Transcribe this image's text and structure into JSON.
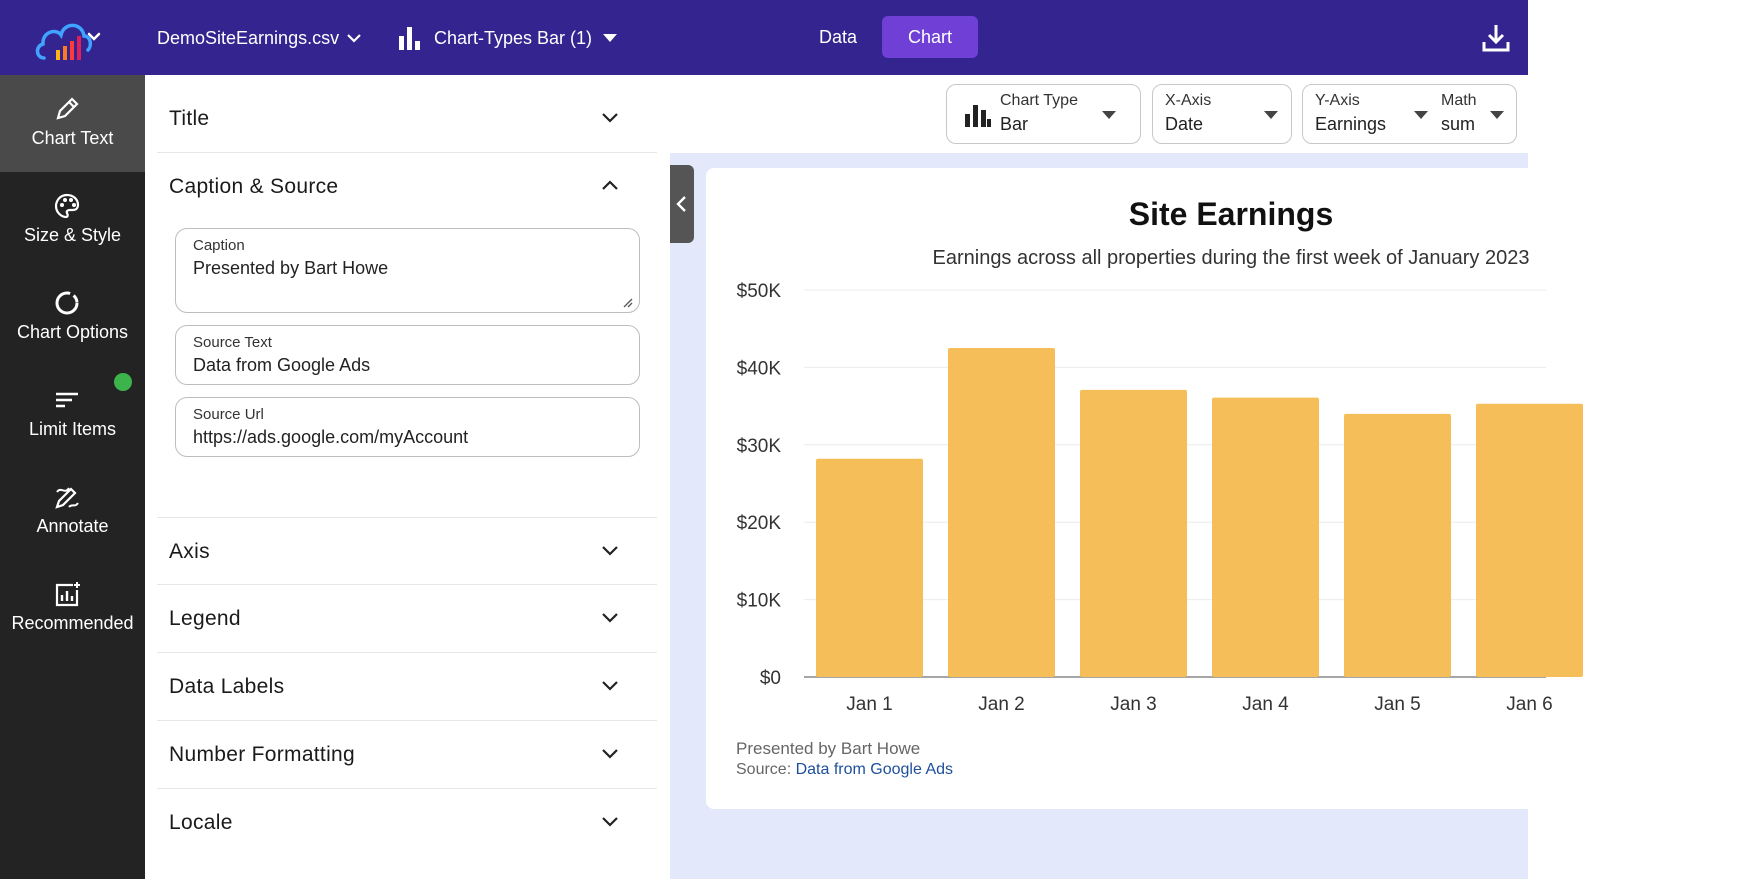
{
  "topbar": {
    "file_name": "DemoSiteEarnings.csv",
    "chart_name": "Chart-Types Bar (1)",
    "nav_data": "Data",
    "nav_chart": "Chart"
  },
  "rail": {
    "items": [
      {
        "label": "Chart Text",
        "icon": "pencil-icon"
      },
      {
        "label": "Size & Style",
        "icon": "palette-icon"
      },
      {
        "label": "Chart Options",
        "icon": "circle-icon"
      },
      {
        "label": "Limit Items",
        "icon": "sort-lines-icon"
      },
      {
        "label": "Annotate",
        "icon": "annotate-icon"
      },
      {
        "label": "Recommended",
        "icon": "recommended-chart-icon"
      }
    ]
  },
  "panel": {
    "sections": [
      "Title",
      "Caption & Source",
      "Axis",
      "Legend",
      "Data Labels",
      "Number Formatting",
      "Locale"
    ],
    "caption_label": "Caption",
    "caption_value": "Presented by Bart Howe",
    "source_text_label": "Source Text",
    "source_text_value": "Data from Google Ads",
    "source_url_label": "Source Url",
    "source_url_value": "https://ads.google.com/myAccount"
  },
  "controls": {
    "chart_type_label": "Chart Type",
    "chart_type_value": "Bar",
    "x_axis_label": "X-Axis",
    "x_axis_value": "Date",
    "y_axis_label": "Y-Axis",
    "y_axis_value": "Earnings",
    "math_label": "Math",
    "math_value": "sum"
  },
  "chart_data": {
    "type": "bar",
    "title": "Site Earnings",
    "subtitle": "Earnings across all properties during the first week of January 2023",
    "categories": [
      "Jan 1",
      "Jan 2",
      "Jan 3",
      "Jan 4",
      "Jan 5",
      "Jan 6"
    ],
    "values": [
      28200,
      42500,
      37100,
      36100,
      34000,
      35300
    ],
    "ylim": [
      0,
      50000
    ],
    "yticks": [
      0,
      10000,
      20000,
      30000,
      40000,
      50000
    ],
    "ytick_labels": [
      "$0",
      "$10K",
      "$20K",
      "$30K",
      "$40K",
      "$50K"
    ],
    "bar_color": "#f5be59",
    "grid": true,
    "caption": "Presented by Bart Howe",
    "source_prefix": "Source:",
    "source_text": "Data from Google Ads"
  },
  "colors": {
    "topbar": "#34248f",
    "accent": "#6f3fd6",
    "rail": "#232323",
    "status_dot": "#3cb44b"
  }
}
